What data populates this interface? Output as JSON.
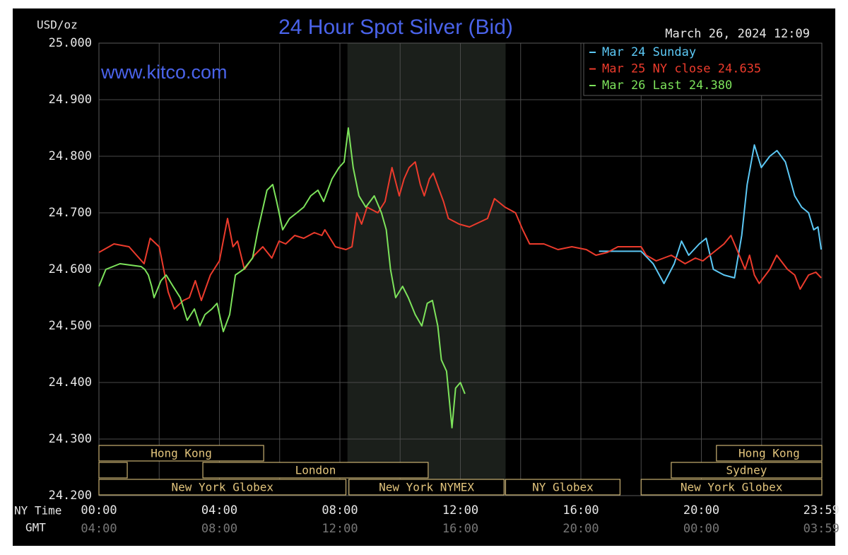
{
  "chart_data": {
    "type": "line",
    "title": "24 Hour Spot Silver (Bid)",
    "y_label": "USD/oz",
    "watermark": "www.kitco.com",
    "timestamp": "March 26, 2024 12:09",
    "x_label": "NY Time",
    "x2_label": "GMT",
    "xlim": [
      0,
      24
    ],
    "ylim": [
      24.2,
      25.0
    ],
    "xticks": [
      {
        "value": 0,
        "label": "00:00"
      },
      {
        "value": 4,
        "label": "04:00"
      },
      {
        "value": 8,
        "label": "08:00"
      },
      {
        "value": 12,
        "label": "12:00"
      },
      {
        "value": 16,
        "label": "16:00"
      },
      {
        "value": 20,
        "label": "20:00"
      },
      {
        "value": 23.983,
        "label": "23:59"
      }
    ],
    "gmt_labels": [
      "04:00",
      "08:00",
      "12:00",
      "16:00",
      "20:00",
      "00:00",
      "03:59"
    ],
    "xgrid": [
      0,
      2,
      4,
      6,
      8,
      10,
      12,
      14,
      16,
      18,
      20,
      22,
      24
    ],
    "yticks": [
      {
        "value": 24.2,
        "label": "24.200"
      },
      {
        "value": 24.3,
        "label": "24.300"
      },
      {
        "value": 24.4,
        "label": "24.400"
      },
      {
        "value": 24.5,
        "label": "24.500"
      },
      {
        "value": 24.6,
        "label": "24.600"
      },
      {
        "value": 24.7,
        "label": "24.700"
      },
      {
        "value": 24.8,
        "label": "24.800"
      },
      {
        "value": 24.9,
        "label": "24.900"
      },
      {
        "value": 25.0,
        "label": "25.000"
      }
    ],
    "grid": true,
    "shaded_range": [
      8.25,
      13.5
    ],
    "sessions": [
      {
        "label": "Hong Kong",
        "start": 0,
        "end": 5.47,
        "row": 0
      },
      {
        "start": 0,
        "end": 0.94,
        "row": 1
      },
      {
        "label": "London",
        "start": 3.45,
        "end": 10.93,
        "row": 1
      },
      {
        "label": "New York Globex",
        "start": 0,
        "end": 8.2,
        "row": 2
      },
      {
        "label": "New York NYMEX",
        "start": 8.3,
        "end": 13.45,
        "row": 2
      },
      {
        "label": "NY Globex",
        "start": 13.5,
        "end": 17.3,
        "row": 2
      },
      {
        "label": "Hong Kong",
        "start": 20.5,
        "end": 24,
        "row": 0
      },
      {
        "label": "Sydney",
        "start": 19,
        "end": 24,
        "row": 1
      },
      {
        "label": "New York Globex",
        "start": 18,
        "end": 24,
        "row": 2
      }
    ],
    "series": [
      {
        "name": "Mar 24 Sunday",
        "color": "#5cc8f5",
        "x": [
          16.6,
          18.0,
          18.4,
          18.76,
          19.1,
          19.34,
          19.58,
          19.93,
          20.16,
          20.4,
          20.75,
          21.1,
          21.34,
          21.52,
          21.76,
          21.99,
          22.27,
          22.51,
          22.79,
          23.1,
          23.33,
          23.56,
          23.73,
          23.87,
          23.98
        ],
        "values": [
          24.632,
          24.632,
          24.61,
          24.575,
          24.61,
          24.65,
          24.625,
          24.645,
          24.655,
          24.6,
          24.59,
          24.585,
          24.66,
          24.75,
          24.82,
          24.78,
          24.8,
          24.81,
          24.79,
          24.73,
          24.71,
          24.7,
          24.67,
          24.675,
          24.635
        ]
      },
      {
        "name": "Mar 25 NY close 24.635",
        "color": "#ec3b2c",
        "x": [
          0,
          0.5,
          1.0,
          1.5,
          1.7,
          2.0,
          2.3,
          2.5,
          2.8,
          3.0,
          3.2,
          3.4,
          3.7,
          4.0,
          4.27,
          4.45,
          4.6,
          4.83,
          5.16,
          5.44,
          5.74,
          5.98,
          6.2,
          6.5,
          6.8,
          7.15,
          7.4,
          7.5,
          7.85,
          8.2,
          8.4,
          8.56,
          8.72,
          8.9,
          9.26,
          9.5,
          9.73,
          9.97,
          10.13,
          10.3,
          10.5,
          10.67,
          10.8,
          10.97,
          11.1,
          11.3,
          11.44,
          11.6,
          11.96,
          12.3,
          12.9,
          13.13,
          13.48,
          13.83,
          14.07,
          14.3,
          14.77,
          15.24,
          15.7,
          16.18,
          16.5,
          16.88,
          17.23,
          18.0,
          18.17,
          18.5,
          19.0,
          19.46,
          19.8,
          20.05,
          20.4,
          20.75,
          20.98,
          21.22,
          21.45,
          21.6,
          21.76,
          21.92,
          22.27,
          22.5,
          22.86,
          23.1,
          23.28,
          23.56,
          23.8,
          23.98
        ],
        "values": [
          24.63,
          24.645,
          24.64,
          24.61,
          24.655,
          24.64,
          24.56,
          24.53,
          24.545,
          24.55,
          24.58,
          24.545,
          24.59,
          24.615,
          24.69,
          24.64,
          24.65,
          24.6,
          24.625,
          24.64,
          24.62,
          24.65,
          24.645,
          24.66,
          24.655,
          24.665,
          24.66,
          24.67,
          24.64,
          24.635,
          24.64,
          24.7,
          24.68,
          24.71,
          24.7,
          24.72,
          24.78,
          24.73,
          24.76,
          24.78,
          24.79,
          24.75,
          24.73,
          24.76,
          24.77,
          24.74,
          24.72,
          24.69,
          24.68,
          24.675,
          24.69,
          24.725,
          24.71,
          24.7,
          24.67,
          24.645,
          24.645,
          24.635,
          24.64,
          24.635,
          24.625,
          24.63,
          24.64,
          24.64,
          24.625,
          24.615,
          24.625,
          24.61,
          24.62,
          24.615,
          24.63,
          24.645,
          24.66,
          24.63,
          24.6,
          24.625,
          24.59,
          24.575,
          24.6,
          24.625,
          24.6,
          24.59,
          24.565,
          24.59,
          24.595,
          24.585
        ]
      },
      {
        "name": "Mar 26 Last 24.380",
        "color": "#7de35b",
        "x": [
          0,
          0.23,
          0.7,
          1.4,
          1.52,
          1.64,
          1.75,
          1.83,
          2.06,
          2.23,
          2.46,
          2.7,
          2.93,
          3.17,
          3.35,
          3.52,
          3.75,
          3.92,
          4.13,
          4.34,
          4.53,
          4.8,
          5.1,
          5.28,
          5.58,
          5.77,
          5.9,
          6.1,
          6.33,
          6.57,
          6.8,
          7.03,
          7.27,
          7.46,
          7.74,
          7.97,
          8.14,
          8.28,
          8.44,
          8.63,
          8.86,
          9.14,
          9.38,
          9.54,
          9.68,
          9.85,
          10.08,
          10.27,
          10.5,
          10.72,
          10.9,
          11.07,
          11.25,
          11.37,
          11.54,
          11.72,
          11.84,
          12.0,
          12.15
        ],
        "values": [
          24.57,
          24.6,
          24.61,
          24.605,
          24.6,
          24.59,
          24.57,
          24.55,
          24.58,
          24.59,
          24.57,
          24.55,
          24.51,
          24.53,
          24.5,
          24.52,
          24.53,
          24.54,
          24.49,
          24.52,
          24.59,
          24.6,
          24.62,
          24.67,
          24.74,
          24.75,
          24.72,
          24.67,
          24.69,
          24.7,
          24.71,
          24.73,
          24.74,
          24.72,
          24.76,
          24.78,
          24.79,
          24.85,
          24.78,
          24.73,
          24.71,
          24.73,
          24.7,
          24.67,
          24.6,
          24.55,
          24.57,
          24.55,
          24.52,
          24.5,
          24.54,
          24.545,
          24.5,
          24.44,
          24.42,
          24.32,
          24.39,
          24.4,
          24.38
        ]
      }
    ]
  }
}
